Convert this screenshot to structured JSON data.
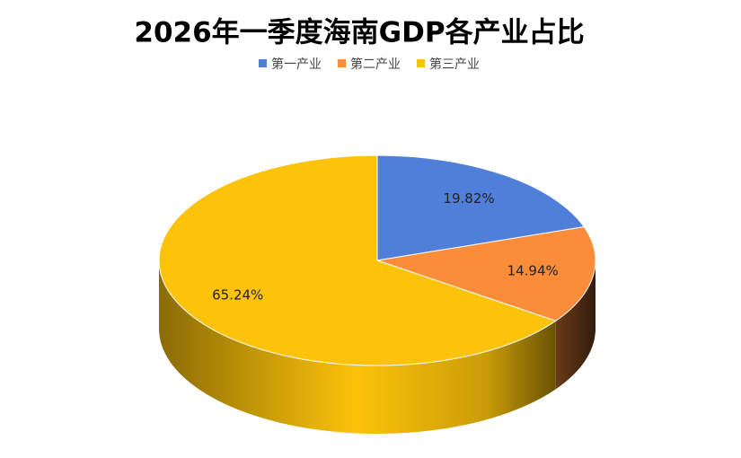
{
  "chart_data": {
    "type": "pie",
    "title": "2026年一季度海南GDP各产业占比",
    "categories": [
      "第一产业",
      "第二产业",
      "第三产业"
    ],
    "values": [
      19.82,
      14.94,
      65.24
    ],
    "value_labels": [
      "19.82%",
      "14.94%",
      "65.24%"
    ],
    "colors": [
      "#4f7fd9",
      "#fb8c3a",
      "#fcc30a"
    ],
    "legend": "top"
  }
}
